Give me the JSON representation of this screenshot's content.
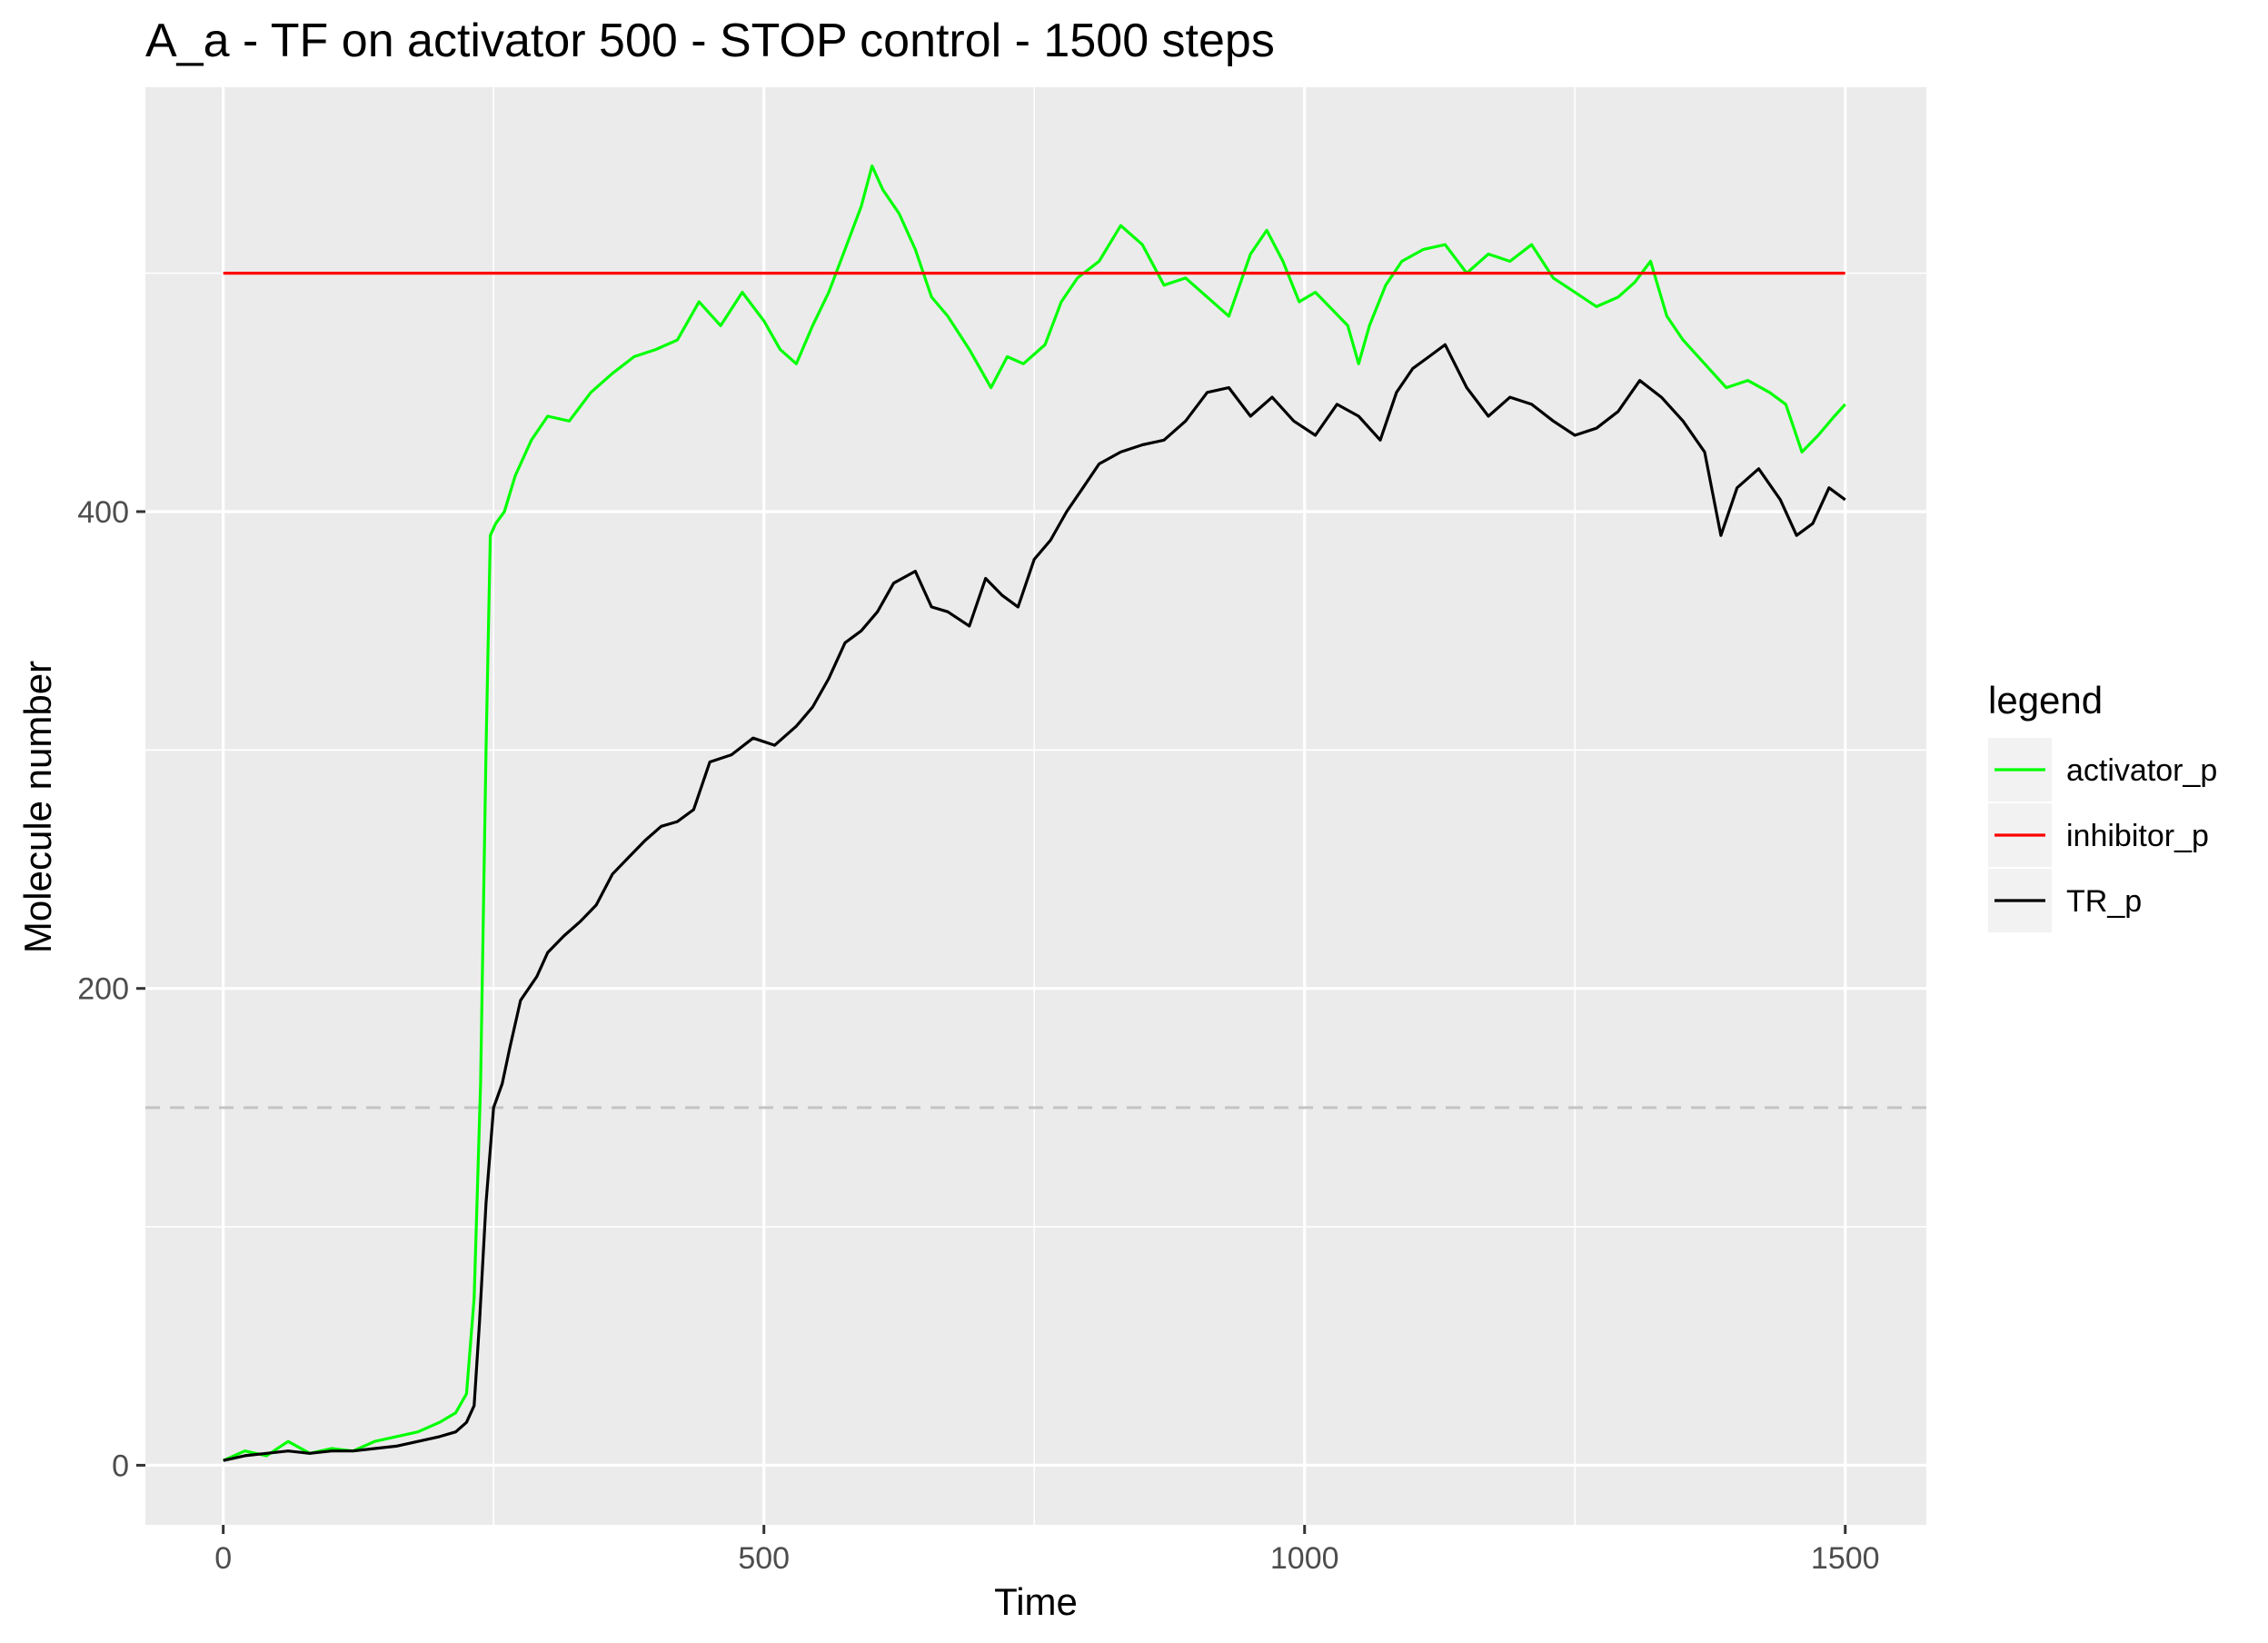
{
  "chart_data": {
    "type": "line",
    "title": "A_a - TF on activator 500 - STOP control - 1500 steps",
    "xlabel": "Time",
    "ylabel": "Molecule number",
    "xlim": [
      -72,
      1575
    ],
    "ylim": [
      -25,
      578
    ],
    "x_ticks": [
      0,
      500,
      1000,
      1500
    ],
    "x_tick_labels": [
      "0",
      "500",
      "1000",
      "1500"
    ],
    "y_ticks": [
      0,
      200,
      400
    ],
    "y_tick_labels": [
      "0",
      "200",
      "400"
    ],
    "grid": true,
    "background": "#ebebeb",
    "legend": {
      "title": "legend",
      "position": "right"
    },
    "series": [
      {
        "name": "activator_p",
        "color": "#00ff00",
        "points": [
          [
            0,
            2
          ],
          [
            20,
            6
          ],
          [
            40,
            4
          ],
          [
            60,
            10
          ],
          [
            80,
            5
          ],
          [
            100,
            7
          ],
          [
            120,
            6
          ],
          [
            140,
            10
          ],
          [
            160,
            12
          ],
          [
            180,
            14
          ],
          [
            200,
            18
          ],
          [
            215,
            22
          ],
          [
            225,
            30
          ],
          [
            232,
            70
          ],
          [
            238,
            160
          ],
          [
            243,
            300
          ],
          [
            247,
            390
          ],
          [
            252,
            395
          ],
          [
            260,
            400
          ],
          [
            270,
            415
          ],
          [
            285,
            430
          ],
          [
            300,
            440
          ],
          [
            320,
            438
          ],
          [
            340,
            450
          ],
          [
            360,
            458
          ],
          [
            380,
            465
          ],
          [
            400,
            468
          ],
          [
            420,
            472
          ],
          [
            440,
            488
          ],
          [
            460,
            478
          ],
          [
            480,
            492
          ],
          [
            500,
            480
          ],
          [
            515,
            468
          ],
          [
            530,
            462
          ],
          [
            545,
            478
          ],
          [
            560,
            492
          ],
          [
            575,
            510
          ],
          [
            590,
            528
          ],
          [
            600,
            545
          ],
          [
            610,
            535
          ],
          [
            625,
            525
          ],
          [
            640,
            510
          ],
          [
            655,
            490
          ],
          [
            670,
            482
          ],
          [
            690,
            468
          ],
          [
            710,
            452
          ],
          [
            725,
            465
          ],
          [
            740,
            462
          ],
          [
            760,
            470
          ],
          [
            775,
            488
          ],
          [
            790,
            498
          ],
          [
            810,
            505
          ],
          [
            830,
            520
          ],
          [
            850,
            512
          ],
          [
            870,
            495
          ],
          [
            890,
            498
          ],
          [
            910,
            490
          ],
          [
            930,
            482
          ],
          [
            950,
            508
          ],
          [
            965,
            518
          ],
          [
            980,
            505
          ],
          [
            995,
            488
          ],
          [
            1010,
            492
          ],
          [
            1025,
            485
          ],
          [
            1040,
            478
          ],
          [
            1050,
            462
          ],
          [
            1060,
            478
          ],
          [
            1075,
            495
          ],
          [
            1090,
            505
          ],
          [
            1110,
            510
          ],
          [
            1130,
            512
          ],
          [
            1150,
            500
          ],
          [
            1170,
            508
          ],
          [
            1190,
            505
          ],
          [
            1210,
            512
          ],
          [
            1230,
            498
          ],
          [
            1250,
            492
          ],
          [
            1270,
            486
          ],
          [
            1290,
            490
          ],
          [
            1305,
            496
          ],
          [
            1320,
            505
          ],
          [
            1335,
            482
          ],
          [
            1350,
            472
          ],
          [
            1370,
            462
          ],
          [
            1390,
            452
          ],
          [
            1410,
            455
          ],
          [
            1430,
            450
          ],
          [
            1445,
            445
          ],
          [
            1460,
            425
          ],
          [
            1475,
            432
          ],
          [
            1490,
            440
          ],
          [
            1500,
            445
          ]
        ]
      },
      {
        "name": "inhibitor_p",
        "color": "#ff0000",
        "points": [
          [
            0,
            500
          ],
          [
            1500,
            500
          ]
        ]
      },
      {
        "name": "TR_p",
        "color": "#000000",
        "points": [
          [
            0,
            2
          ],
          [
            20,
            4
          ],
          [
            40,
            5
          ],
          [
            60,
            6
          ],
          [
            80,
            5
          ],
          [
            100,
            6
          ],
          [
            120,
            6
          ],
          [
            140,
            7
          ],
          [
            160,
            8
          ],
          [
            180,
            10
          ],
          [
            200,
            12
          ],
          [
            215,
            14
          ],
          [
            225,
            18
          ],
          [
            232,
            25
          ],
          [
            237,
            60
          ],
          [
            243,
            110
          ],
          [
            250,
            150
          ],
          [
            258,
            160
          ],
          [
            265,
            175
          ],
          [
            275,
            195
          ],
          [
            290,
            205
          ],
          [
            300,
            215
          ],
          [
            315,
            222
          ],
          [
            330,
            228
          ],
          [
            345,
            235
          ],
          [
            360,
            248
          ],
          [
            375,
            255
          ],
          [
            390,
            262
          ],
          [
            405,
            268
          ],
          [
            420,
            270
          ],
          [
            435,
            275
          ],
          [
            450,
            295
          ],
          [
            470,
            298
          ],
          [
            490,
            305
          ],
          [
            510,
            302
          ],
          [
            530,
            310
          ],
          [
            545,
            318
          ],
          [
            560,
            330
          ],
          [
            575,
            345
          ],
          [
            590,
            350
          ],
          [
            605,
            358
          ],
          [
            620,
            370
          ],
          [
            640,
            375
          ],
          [
            655,
            360
          ],
          [
            670,
            358
          ],
          [
            690,
            352
          ],
          [
            705,
            372
          ],
          [
            720,
            365
          ],
          [
            735,
            360
          ],
          [
            750,
            380
          ],
          [
            765,
            388
          ],
          [
            780,
            400
          ],
          [
            795,
            410
          ],
          [
            810,
            420
          ],
          [
            830,
            425
          ],
          [
            850,
            428
          ],
          [
            870,
            430
          ],
          [
            890,
            438
          ],
          [
            910,
            450
          ],
          [
            930,
            452
          ],
          [
            950,
            440
          ],
          [
            970,
            448
          ],
          [
            990,
            438
          ],
          [
            1010,
            432
          ],
          [
            1030,
            445
          ],
          [
            1050,
            440
          ],
          [
            1070,
            430
          ],
          [
            1085,
            450
          ],
          [
            1100,
            460
          ],
          [
            1115,
            465
          ],
          [
            1130,
            470
          ],
          [
            1150,
            452
          ],
          [
            1170,
            440
          ],
          [
            1190,
            448
          ],
          [
            1210,
            445
          ],
          [
            1230,
            438
          ],
          [
            1250,
            432
          ],
          [
            1270,
            435
          ],
          [
            1290,
            442
          ],
          [
            1310,
            455
          ],
          [
            1330,
            448
          ],
          [
            1350,
            438
          ],
          [
            1370,
            425
          ],
          [
            1385,
            390
          ],
          [
            1400,
            410
          ],
          [
            1420,
            418
          ],
          [
            1440,
            405
          ],
          [
            1455,
            390
          ],
          [
            1470,
            395
          ],
          [
            1485,
            410
          ],
          [
            1500,
            405
          ]
        ]
      }
    ],
    "reference_lines": [
      {
        "y": 150,
        "style": "dashed",
        "color": "#c4c4c4"
      }
    ]
  }
}
